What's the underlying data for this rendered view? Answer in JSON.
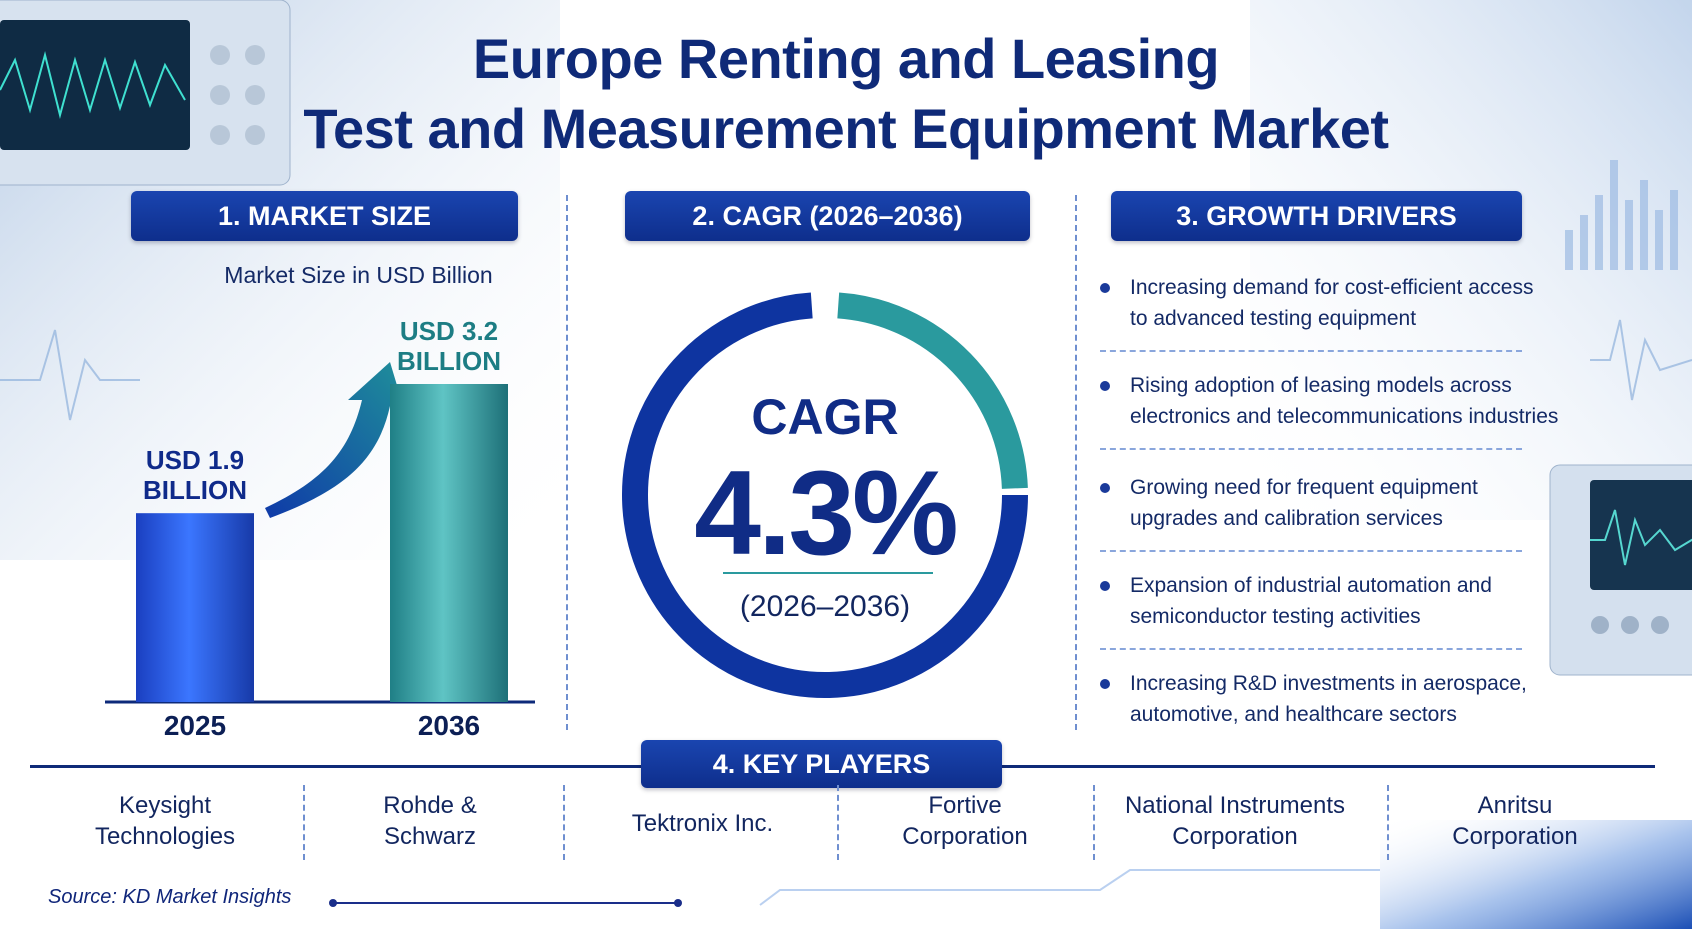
{
  "title_line1": "Europe Renting and Leasing",
  "title_line2": "Test and Measurement Equipment Market",
  "sections": {
    "market_size": "1. MARKET SIZE",
    "cagr": "2. CAGR (2026–2036)",
    "growth_drivers": "3. GROWTH DRIVERS",
    "key_players": "4. KEY PLAYERS"
  },
  "chart_data": {
    "type": "bar",
    "title": "Market Size in USD Billion",
    "categories": [
      "2025",
      "2036"
    ],
    "values": [
      1.9,
      3.2
    ],
    "data_labels": [
      {
        "line1": "USD 1.9",
        "line2": "BILLION"
      },
      {
        "line1": "USD 3.2",
        "line2": "BILLION"
      }
    ],
    "ylim": [
      0,
      3.2
    ],
    "grid": false,
    "colors": [
      "#1f4fd8",
      "#2a9a9e"
    ]
  },
  "cagr": {
    "label": "CAGR",
    "value": "4.3%",
    "period": "(2026–2036)",
    "ring_colors": {
      "primary": "#0e34a0",
      "accent": "#2a9a9e"
    }
  },
  "growth_drivers": [
    {
      "line1": "Increasing demand for cost-efficient access",
      "line2": "to advanced testing equipment"
    },
    {
      "line1": "Rising adoption of leasing models across",
      "line2": "electronics and telecommunications industries"
    },
    {
      "line1": "Growing need for frequent equipment",
      "line2": "upgrades and calibration services"
    },
    {
      "line1": "Expansion of industrial automation and",
      "line2": "semiconductor testing activities"
    },
    {
      "line1": "Increasing R&D investments in aerospace,",
      "line2": "automotive, and healthcare sectors"
    }
  ],
  "key_players": [
    {
      "line1": "Keysight",
      "line2": "Technologies"
    },
    {
      "line1": "Rohde &",
      "line2": "Schwarz"
    },
    {
      "line1": "Tektronix Inc.",
      "line2": ""
    },
    {
      "line1": "Fortive",
      "line2": "Corporation"
    },
    {
      "line1": "National Instruments",
      "line2": "Corporation"
    },
    {
      "line1": "Anritsu",
      "line2": "Corporation"
    }
  ],
  "source": "Source: KD Market Insights",
  "colors": {
    "navy": "#0f2a78",
    "teal": "#2a9a9e",
    "blue": "#1f4fd8"
  }
}
